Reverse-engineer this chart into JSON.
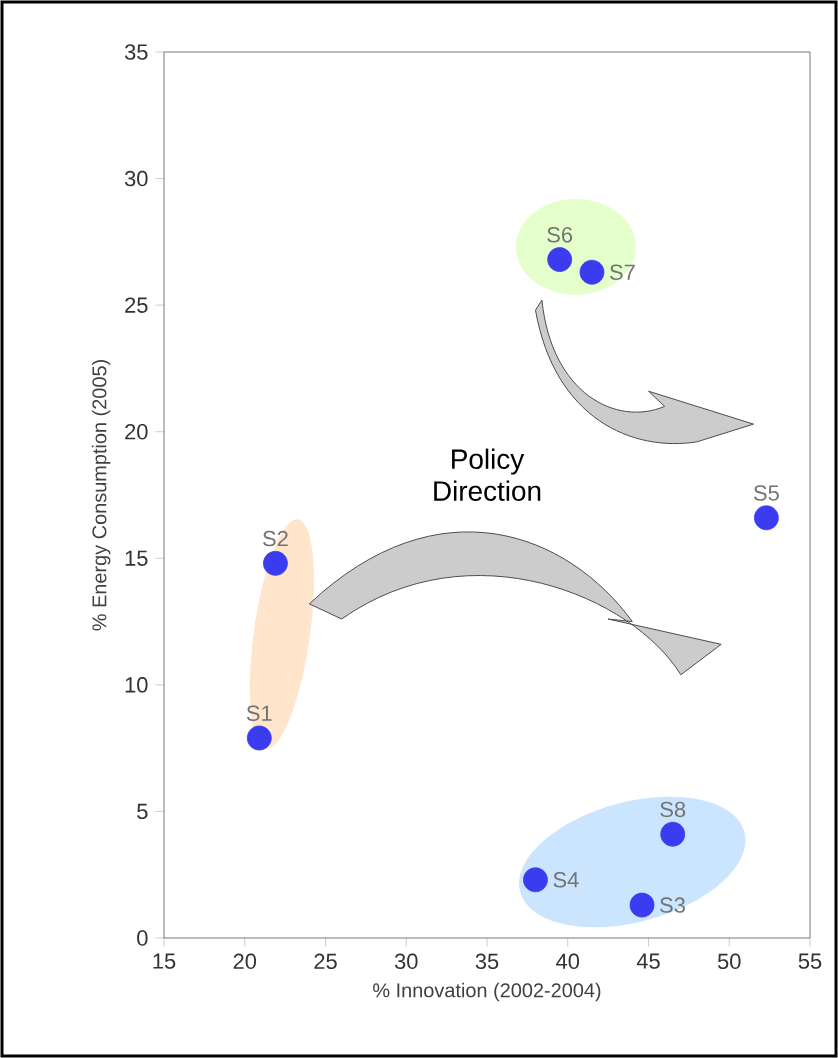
{
  "chart_data": {
    "type": "scatter",
    "xlabel": "% Innovation (2002-2004)",
    "ylabel": "% Energy Consumption (2005)",
    "x": [
      20.9,
      21.9,
      44.6,
      38.0,
      52.3,
      39.5,
      41.5,
      46.5
    ],
    "values": [
      7.9,
      14.8,
      1.3,
      2.3,
      16.6,
      26.8,
      26.3,
      4.1
    ],
    "color": "#3b3bef",
    "xlim": [
      15,
      55
    ],
    "ylim": [
      0,
      35
    ],
    "xticks": [
      15,
      20,
      25,
      30,
      35,
      40,
      45,
      50,
      55
    ],
    "yticks": [
      0,
      5,
      10,
      15,
      20,
      25,
      30,
      35
    ],
    "annotations": [
      {
        "text": "S1",
        "x": 20.9,
        "y": 7.9
      },
      {
        "text": "S2",
        "x": 21.9,
        "y": 14.8
      },
      {
        "text": "S3",
        "x": 44.6,
        "y": 1.3
      },
      {
        "text": "S4",
        "x": 38.0,
        "y": 2.3
      },
      {
        "text": "S5",
        "x": 52.3,
        "y": 16.6
      },
      {
        "text": "S6",
        "x": 39.5,
        "y": 26.8
      },
      {
        "text": "S7",
        "x": 41.5,
        "y": 26.3
      },
      {
        "text": "S8",
        "x": 46.5,
        "y": 4.1
      },
      "Policy Direction"
    ]
  }
}
